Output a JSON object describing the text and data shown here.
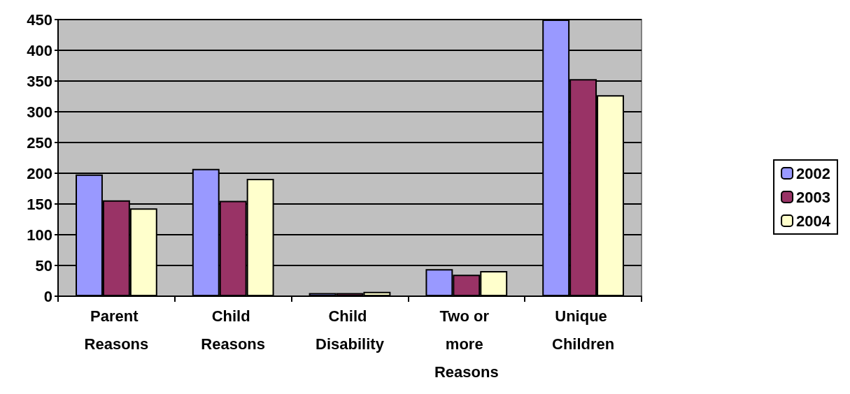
{
  "chart_data": {
    "type": "bar",
    "categories": [
      "Parent Reasons",
      "Child Reasons",
      "Child Disability",
      "Two or more Reasons",
      "Unique Children"
    ],
    "series": [
      {
        "name": "2002",
        "color": "#9999ff",
        "values": [
          198,
          207,
          5,
          44,
          450
        ]
      },
      {
        "name": "2003",
        "color": "#993366",
        "values": [
          156,
          155,
          5,
          35,
          353
        ]
      },
      {
        "name": "2004",
        "color": "#ffffcc",
        "values": [
          143,
          191,
          7,
          41,
          327
        ]
      }
    ],
    "ylim": [
      0,
      450
    ],
    "yticks": [
      0,
      50,
      100,
      150,
      200,
      250,
      300,
      350,
      400,
      450
    ],
    "grid": "y",
    "legend": "right"
  }
}
